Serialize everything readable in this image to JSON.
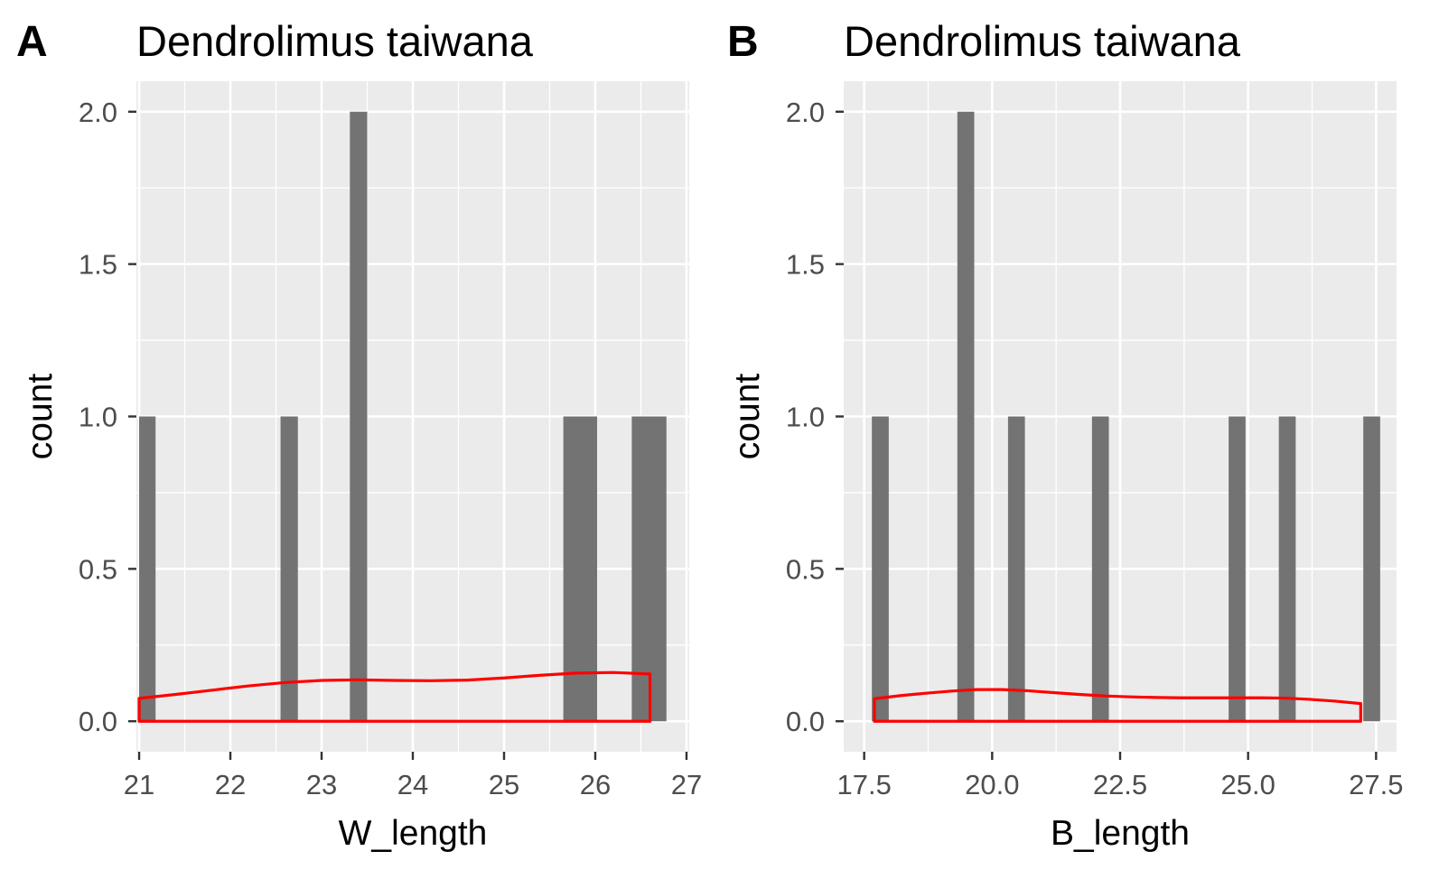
{
  "chart_data": [
    {
      "type": "bar",
      "panel_tag": "A",
      "title": "Dendrolimus taiwana",
      "xlabel": "W_length",
      "ylabel": "count",
      "xlim": [
        20.97,
        27.03
      ],
      "ylim": [
        -0.1,
        2.1
      ],
      "x_ticks": [
        21,
        22,
        23,
        24,
        25,
        26,
        27
      ],
      "x_tick_labels": [
        "21",
        "22",
        "23",
        "24",
        "25",
        "26",
        "27"
      ],
      "y_ticks": [
        0,
        0.5,
        1,
        1.5,
        2
      ],
      "y_tick_labels": [
        "0.0",
        "0.5",
        "1.0",
        "1.5",
        "2.0"
      ],
      "grid": true,
      "background": "#EBEBEB",
      "bar_color": "#737373",
      "bars": [
        {
          "x0": 21.0,
          "x1": 21.18,
          "count": 1
        },
        {
          "x0": 22.55,
          "x1": 22.74,
          "count": 1
        },
        {
          "x0": 23.31,
          "x1": 23.5,
          "count": 2
        },
        {
          "x0": 25.65,
          "x1": 26.02,
          "count": 1
        },
        {
          "x0": 26.4,
          "x1": 26.78,
          "count": 1
        }
      ],
      "density_color": "#FF0000",
      "density": {
        "x": [
          21.0,
          21.4,
          21.8,
          22.2,
          22.6,
          23.0,
          23.4,
          23.8,
          24.2,
          24.6,
          25.0,
          25.4,
          25.8,
          26.2,
          26.6
        ],
        "y": [
          0.075,
          0.088,
          0.102,
          0.116,
          0.127,
          0.134,
          0.136,
          0.134,
          0.133,
          0.135,
          0.142,
          0.151,
          0.158,
          0.16,
          0.155
        ]
      }
    },
    {
      "type": "bar",
      "panel_tag": "B",
      "title": "Dendrolimus taiwana",
      "xlabel": "B_length",
      "ylabel": "count",
      "xlim": [
        17.1,
        27.9
      ],
      "ylim": [
        -0.1,
        2.1
      ],
      "x_ticks": [
        17.5,
        20.0,
        22.5,
        25.0,
        27.5
      ],
      "x_tick_labels": [
        "17.5",
        "20.0",
        "22.5",
        "25.0",
        "27.5"
      ],
      "y_ticks": [
        0,
        0.5,
        1,
        1.5,
        2
      ],
      "y_tick_labels": [
        "0.0",
        "0.5",
        "1.0",
        "1.5",
        "2.0"
      ],
      "grid": true,
      "background": "#EBEBEB",
      "bar_color": "#737373",
      "bars": [
        {
          "x0": 17.65,
          "x1": 17.98,
          "count": 1
        },
        {
          "x0": 19.32,
          "x1": 19.65,
          "count": 2
        },
        {
          "x0": 20.31,
          "x1": 20.64,
          "count": 1
        },
        {
          "x0": 21.95,
          "x1": 22.28,
          "count": 1
        },
        {
          "x0": 24.62,
          "x1": 24.95,
          "count": 1
        },
        {
          "x0": 25.6,
          "x1": 25.93,
          "count": 1
        },
        {
          "x0": 27.25,
          "x1": 27.58,
          "count": 1
        }
      ],
      "density_color": "#FF0000",
      "density": {
        "x": [
          17.7,
          18.2,
          18.7,
          19.2,
          19.7,
          20.2,
          20.7,
          21.2,
          21.7,
          22.2,
          22.7,
          23.2,
          23.7,
          24.2,
          24.7,
          25.2,
          25.7,
          26.2,
          26.7,
          27.2
        ],
        "y": [
          0.074,
          0.084,
          0.092,
          0.099,
          0.104,
          0.104,
          0.1,
          0.094,
          0.088,
          0.083,
          0.08,
          0.078,
          0.077,
          0.077,
          0.077,
          0.077,
          0.076,
          0.072,
          0.066,
          0.058
        ]
      }
    }
  ]
}
